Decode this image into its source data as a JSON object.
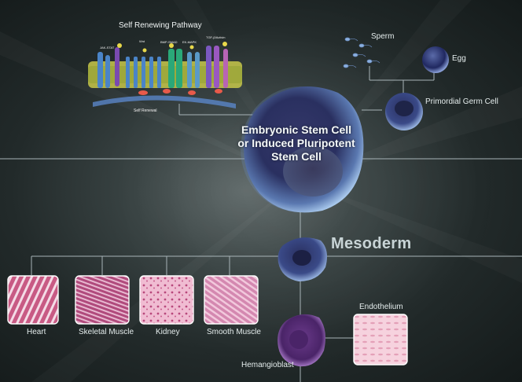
{
  "pathway": {
    "title": "Self Renewing Pathway",
    "receptors": [
      "JAK-STAT",
      "Wnt",
      "BMP-SMAD",
      "EK-MAPK",
      "TGF-β/Activin"
    ],
    "footer": "Self Renewal"
  },
  "center": {
    "line1": "Embryonic Stem Cell",
    "line2": "or Induced Pluripotent",
    "line3": "Stem Cell"
  },
  "germline": {
    "sperm": "Sperm",
    "egg": "Egg",
    "primordial": "Primordial Germ Cell"
  },
  "mesoderm": {
    "label": "Mesoderm",
    "tissues": [
      "Heart",
      "Skeletal Muscle",
      "Kidney",
      "Smooth Muscle"
    ],
    "hemangioblast": "Hemangioblast",
    "endothelium": "Endothelium"
  },
  "colors": {
    "background": "#2a3232",
    "line": "#a8b4b8",
    "stem_cell": "#7a98c8",
    "tissue_pink": "#e6a8c4",
    "hemangioblast": "#8a5cae"
  }
}
